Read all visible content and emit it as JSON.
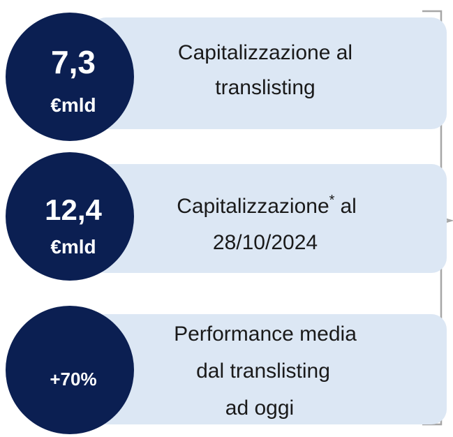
{
  "items": [
    {
      "value": "7,3",
      "unit": "€mld",
      "lines": [
        "Capitalizzazione al",
        "translisting"
      ]
    },
    {
      "value": "12,4",
      "unit": "€mld",
      "lines": [
        {
          "text": "Capitalizzazione",
          "sup": "*",
          "rest": "al"
        },
        "28/10/2024"
      ]
    },
    {
      "value": "+70%",
      "lines": [
        "Performance media",
        "dal translisting",
        "ad oggi"
      ]
    }
  ]
}
